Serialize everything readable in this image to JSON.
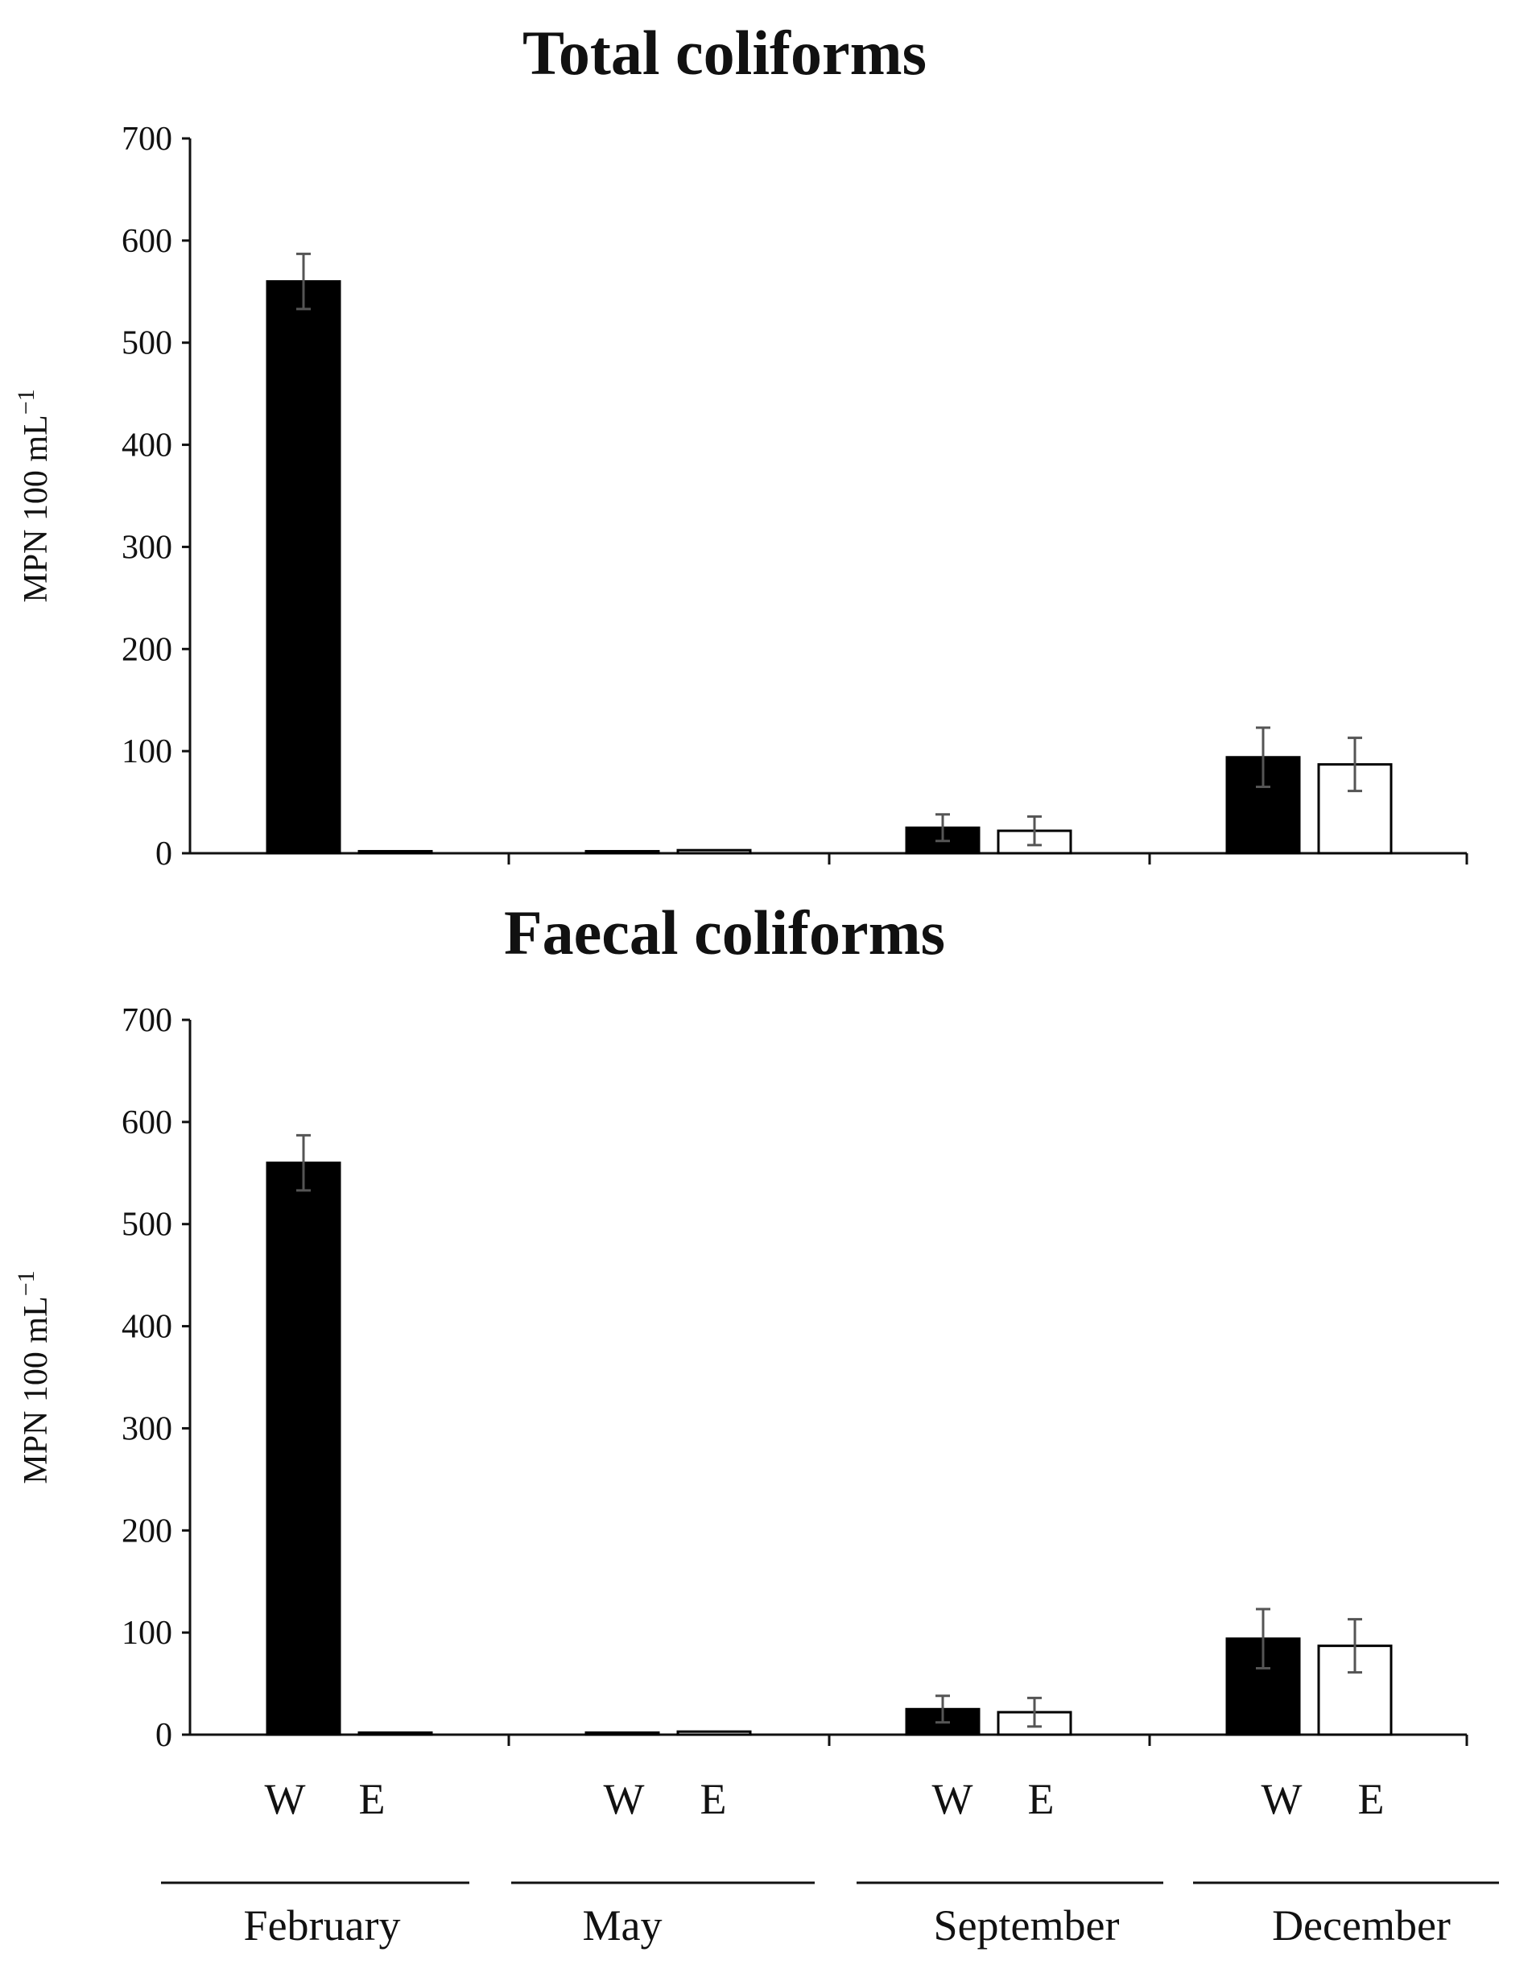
{
  "chart_data": [
    {
      "type": "bar",
      "title": "Total coliforms",
      "ylabel": "MPN 100 mL",
      "ylabel_superscript": "−1",
      "ylim": [
        0,
        700
      ],
      "yticks": [
        "0",
        "100",
        "200",
        "300",
        "400",
        "500",
        "600",
        "700"
      ],
      "categories": [
        "February",
        "May",
        "September",
        "December"
      ],
      "series": [
        {
          "name": "W",
          "color": "#000000",
          "values": [
            560,
            2,
            25,
            94
          ],
          "errors": [
            27,
            0,
            13,
            29
          ]
        },
        {
          "name": "E",
          "color": "#ffffff",
          "values": [
            2,
            3,
            22,
            87
          ],
          "errors": [
            0,
            0,
            14,
            26
          ]
        }
      ]
    },
    {
      "type": "bar",
      "title": "Faecal coliforms",
      "ylabel": "MPN 100 mL",
      "ylabel_superscript": "−1",
      "ylim": [
        0,
        700
      ],
      "yticks": [
        "0",
        "100",
        "200",
        "300",
        "400",
        "500",
        "600",
        "700"
      ],
      "categories": [
        "February",
        "May",
        "September",
        "December"
      ],
      "series": [
        {
          "name": "W",
          "color": "#000000",
          "values": [
            560,
            2,
            25,
            94
          ],
          "errors": [
            27,
            0,
            13,
            29
          ]
        },
        {
          "name": "E",
          "color": "#ffffff",
          "values": [
            2,
            3,
            22,
            87
          ],
          "errors": [
            0,
            0,
            14,
            26
          ]
        }
      ]
    }
  ],
  "bottom_labels": {
    "pairs": [
      [
        "W",
        "E"
      ],
      [
        "W",
        "E"
      ],
      [
        "W",
        "E"
      ],
      [
        "W",
        "E"
      ]
    ],
    "months": [
      "February",
      "May",
      "September",
      "December"
    ]
  }
}
